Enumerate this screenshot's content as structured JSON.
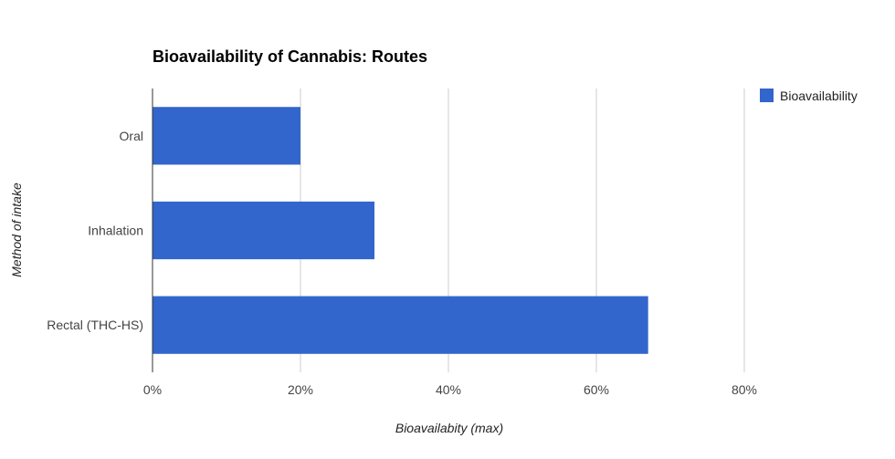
{
  "chart_data": {
    "type": "bar",
    "orientation": "horizontal",
    "title": "Bioavailability of Cannabis: Routes",
    "xlabel": "Bioavailabity (max)",
    "ylabel": "Method of intake",
    "categories": [
      "Oral",
      "Inhalation",
      "Rectal (THC-HS)"
    ],
    "series": [
      {
        "name": "Bioavailability",
        "values": [
          20,
          30,
          67
        ],
        "color": "#3366cc"
      }
    ],
    "xlim": [
      0,
      80
    ],
    "x_ticks": [
      {
        "value": 0,
        "label": "0%"
      },
      {
        "value": 20,
        "label": "20%"
      },
      {
        "value": 40,
        "label": "40%"
      },
      {
        "value": 60,
        "label": "60%"
      },
      {
        "value": 80,
        "label": "80%"
      }
    ],
    "grid": true,
    "legend_position": "top-right"
  }
}
